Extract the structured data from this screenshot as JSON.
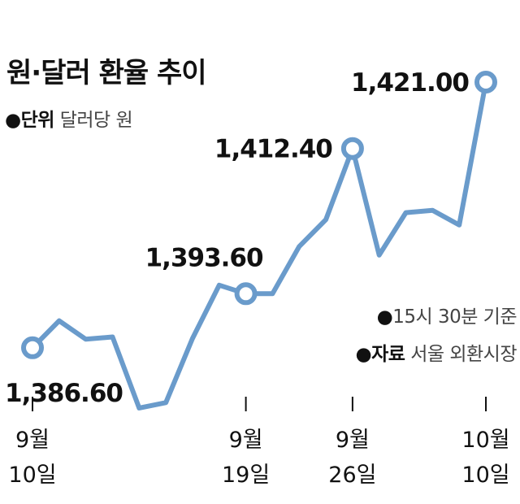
{
  "chart_data": {
    "type": "line",
    "title": "원·달러 환율 추이",
    "unit_label": "단위",
    "unit_value": "달러당 원",
    "time_note": "15시 30분 기준",
    "source_label": "자료",
    "source_value": "서울 외환시장",
    "xlabel": "",
    "ylabel": "",
    "ylim": [
      1383,
      1423
    ],
    "x": [
      "9월 10일",
      "",
      "",
      "",
      "",
      "",
      "",
      "",
      "9월 19일",
      "",
      "",
      "",
      "9월 26일",
      "",
      "",
      "",
      "",
      "10월 10일"
    ],
    "values": [
      1386.6,
      1390.1,
      1387.7,
      1388.0,
      1378.8,
      1379.5,
      1387.8,
      1394.7,
      1393.6,
      1393.6,
      1399.7,
      1403.2,
      1412.4,
      1398.6,
      1404.1,
      1404.4,
      1402.5,
      1421.0
    ],
    "ticks": [
      {
        "index": 0,
        "month": "9월",
        "day": "10일"
      },
      {
        "index": 8,
        "month": "9월",
        "day": "19일"
      },
      {
        "index": 12,
        "month": "9월",
        "day": "26일"
      },
      {
        "index": 17,
        "month": "10월",
        "day": "10일"
      }
    ],
    "highlights": [
      {
        "index": 0,
        "label": "1,386.60"
      },
      {
        "index": 8,
        "label": "1,393.60"
      },
      {
        "index": 12,
        "label": "1,412.40"
      },
      {
        "index": 17,
        "label": "1,421.00"
      }
    ],
    "line_color": "#6a9bcb",
    "marker_fill": "#ffffff"
  }
}
